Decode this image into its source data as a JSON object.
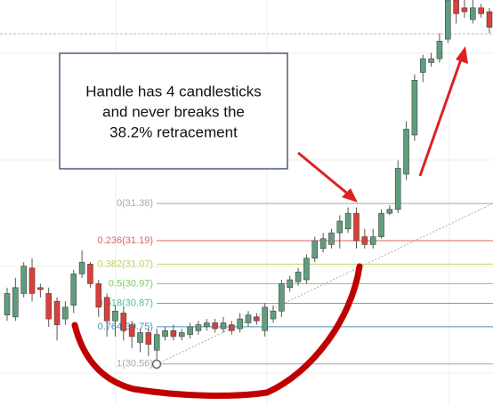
{
  "chart_data": {
    "type": "candlestick",
    "annotation": [
      "Handle has 4 candlesticks",
      "and never breaks the",
      "38.2% retracement"
    ],
    "up_color": "#5e9e7c",
    "down_color": "#d9403a",
    "ylim": [
      30.35,
      32.42
    ],
    "grid": true,
    "fib_levels": [
      {
        "label": "0(31.38)",
        "value": 31.38,
        "color": "#a8a8a8"
      },
      {
        "label": "0.236(31.19)",
        "value": 31.19,
        "color": "#e06060"
      },
      {
        "label": "0.382(31.07)",
        "value": 31.07,
        "color": "#b8d65c"
      },
      {
        "label": "0.5(30.97)",
        "value": 30.97,
        "color": "#78cc5a"
      },
      {
        "label": "0.618(30.87)",
        "value": 30.87,
        "color": "#48bc9c"
      },
      {
        "label": "0.764(30.75)",
        "value": 30.75,
        "color": "#4c8ec4"
      },
      {
        "label": "1(30.56)",
        "value": 30.56,
        "color": "#a8a8a8"
      }
    ],
    "open": [
      30.81,
      30.8,
      30.92,
      31.05,
      30.95,
      30.92,
      30.88,
      30.79,
      30.86,
      31.02,
      31.07,
      30.97,
      30.9,
      30.78,
      30.82,
      30.76,
      30.67,
      30.72,
      30.63,
      30.7,
      30.73,
      30.7,
      30.71,
      30.73,
      30.75,
      30.77,
      30.74,
      30.76,
      30.74,
      30.77,
      30.8,
      30.73,
      30.79,
      30.83,
      30.95,
      30.98,
      30.99,
      31.1,
      31.15,
      31.17,
      31.23,
      31.25,
      31.33,
      31.21,
      31.17,
      31.21,
      31.33,
      31.35,
      31.53,
      31.73,
      32.05,
      32.1,
      32.12,
      32.22,
      32.42,
      32.38,
      32.32,
      32.38,
      32.36
    ],
    "close": [
      30.92,
      30.95,
      31.06,
      30.92,
      30.94,
      30.79,
      30.76,
      30.85,
      31.02,
      31.08,
      30.97,
      30.85,
      30.78,
      30.83,
      30.73,
      30.7,
      30.72,
      30.66,
      30.71,
      30.73,
      30.7,
      30.72,
      30.75,
      30.76,
      30.77,
      30.74,
      30.77,
      30.73,
      30.79,
      30.81,
      30.78,
      30.85,
      30.83,
      30.97,
      30.99,
      31.03,
      31.1,
      31.19,
      31.2,
      31.23,
      31.29,
      31.33,
      31.19,
      31.17,
      31.21,
      31.33,
      31.35,
      31.56,
      31.76,
      32.01,
      32.12,
      32.12,
      32.21,
      32.42,
      32.35,
      32.36,
      32.38,
      32.35,
      32.28
    ],
    "high": [
      30.95,
      31.0,
      31.08,
      31.1,
      30.97,
      30.95,
      30.9,
      30.88,
      31.04,
      31.14,
      31.08,
      30.99,
      30.92,
      30.86,
      30.85,
      30.78,
      30.74,
      30.74,
      30.74,
      30.75,
      30.76,
      30.74,
      30.77,
      30.78,
      30.79,
      30.79,
      30.8,
      30.78,
      30.82,
      30.83,
      30.82,
      30.87,
      30.86,
      30.99,
      31.01,
      31.05,
      31.12,
      31.21,
      31.23,
      31.25,
      31.32,
      31.36,
      31.36,
      31.25,
      31.25,
      31.35,
      31.37,
      31.6,
      31.8,
      32.04,
      32.14,
      32.15,
      32.25,
      32.42,
      32.42,
      32.42,
      32.42,
      32.4,
      32.38
    ],
    "low": [
      30.78,
      30.78,
      30.9,
      30.88,
      30.9,
      30.75,
      30.68,
      30.76,
      30.82,
      31.0,
      30.95,
      30.8,
      30.7,
      30.7,
      30.68,
      30.64,
      30.62,
      30.6,
      30.58,
      30.68,
      30.68,
      30.68,
      30.69,
      30.71,
      30.73,
      30.72,
      30.72,
      30.71,
      30.72,
      30.75,
      30.76,
      30.7,
      30.77,
      30.8,
      30.93,
      30.96,
      30.97,
      31.08,
      31.13,
      31.15,
      31.15,
      31.23,
      31.15,
      31.15,
      31.15,
      31.2,
      31.32,
      31.33,
      31.5,
      31.7,
      32.0,
      32.08,
      32.1,
      32.2,
      32.3,
      32.33,
      32.3,
      32.33,
      32.25
    ]
  }
}
